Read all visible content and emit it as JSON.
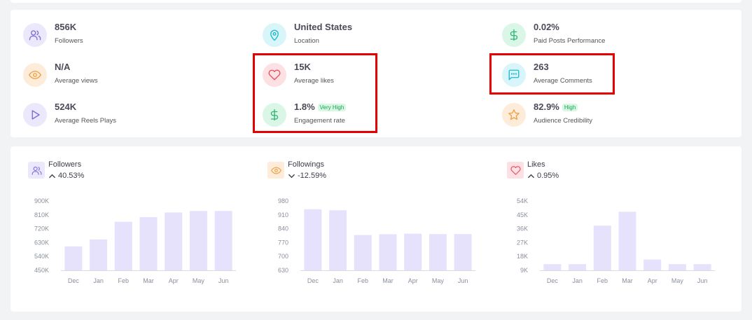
{
  "stats": [
    {
      "value": "856K",
      "label": "Followers",
      "icon": "users-icon",
      "tag": ""
    },
    {
      "value": "United States",
      "label": "Location",
      "icon": "location-pin-icon",
      "tag": ""
    },
    {
      "value": "0.02%",
      "label": "Paid Posts Performance",
      "icon": "dollar-icon",
      "tag": ""
    },
    {
      "value": "N/A",
      "label": "Average views",
      "icon": "eye-icon",
      "tag": ""
    },
    {
      "value": "15K",
      "label": "Average likes",
      "icon": "heart-icon",
      "tag": ""
    },
    {
      "value": "263",
      "label": "Average Comments",
      "icon": "comment-icon",
      "tag": ""
    },
    {
      "value": "524K",
      "label": "Average Reels Plays",
      "icon": "play-icon",
      "tag": ""
    },
    {
      "value": "1.8%",
      "label": "Engagement rate",
      "icon": "dollar-icon",
      "tag": "Very High"
    },
    {
      "value": "82.9%",
      "label": "Audience Credibility",
      "icon": "star-icon",
      "tag": "High"
    }
  ],
  "charts": [
    {
      "title": "Followers",
      "change": "40.53%",
      "direction": "up",
      "icon": "users-icon"
    },
    {
      "title": "Followings",
      "change": "-12.59%",
      "direction": "down",
      "icon": "eye-icon"
    },
    {
      "title": "Likes",
      "change": "0.95%",
      "direction": "up",
      "icon": "heart-icon"
    }
  ],
  "chart_data": [
    {
      "type": "bar",
      "title": "Followers",
      "categories": [
        "Dec",
        "Jan",
        "Feb",
        "Mar",
        "Apr",
        "May",
        "Jun"
      ],
      "values": [
        605000,
        650000,
        765000,
        795000,
        825000,
        835000,
        835000
      ],
      "ylim": [
        450000,
        900000
      ],
      "yticks": [
        "900K",
        "810K",
        "720K",
        "630K",
        "540K",
        "450K"
      ],
      "bar_color": "#e6e2fb",
      "grid": false
    },
    {
      "type": "bar",
      "title": "Followings",
      "categories": [
        "Dec",
        "Jan",
        "Feb",
        "Mar",
        "Apr",
        "May",
        "Jun"
      ],
      "values": [
        938,
        933,
        808,
        812,
        815,
        813,
        813
      ],
      "ylim": [
        630,
        980
      ],
      "yticks": [
        "980",
        "910",
        "840",
        "770",
        "700",
        "630"
      ],
      "bar_color": "#e6e2fb",
      "grid": false
    },
    {
      "type": "bar",
      "title": "Likes",
      "categories": [
        "Dec",
        "Jan",
        "Feb",
        "Mar",
        "Apr",
        "May",
        "Jun"
      ],
      "values": [
        13000,
        13000,
        38000,
        47000,
        16000,
        13000,
        13000
      ],
      "ylim": [
        9000,
        54000
      ],
      "yticks": [
        "54K",
        "45K",
        "36K",
        "27K",
        "18K",
        "9K"
      ],
      "bar_color": "#e6e2fb",
      "grid": false
    }
  ],
  "colors": {
    "highlight_border": "#e60000",
    "tag_bg": "#d8f8e4",
    "tag_text": "#1aa153"
  }
}
